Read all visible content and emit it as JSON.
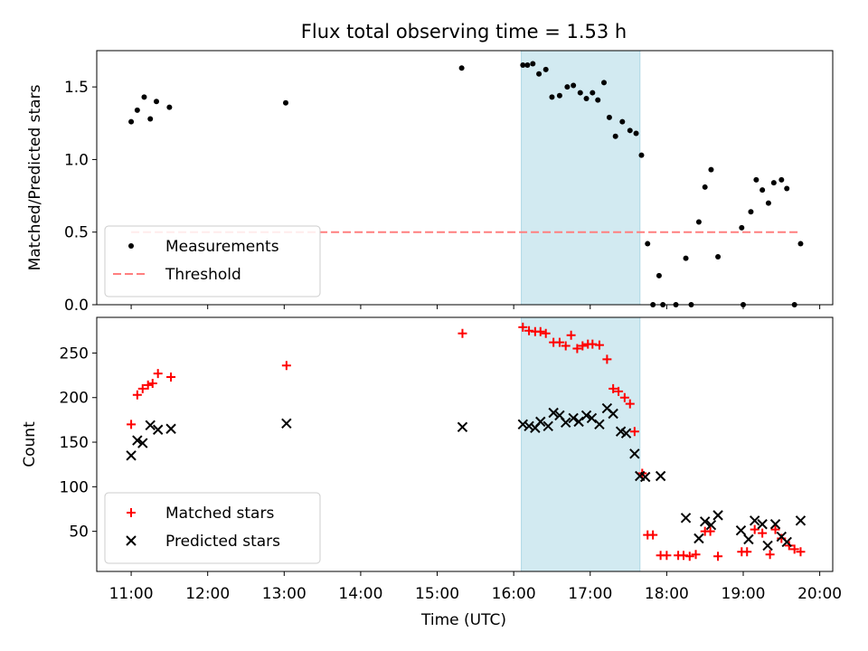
{
  "chart_data": {
    "type": "scatter",
    "title": "Flux total observing time = 1.53 h",
    "xlabel": "Time (UTC)",
    "xlim": [
      10.55,
      20.17
    ],
    "x_ticks": [
      11,
      12,
      13,
      14,
      15,
      16,
      17,
      18,
      19,
      20
    ],
    "x_tick_labels": [
      "11:00",
      "12:00",
      "13:00",
      "14:00",
      "15:00",
      "16:00",
      "17:00",
      "18:00",
      "19:00",
      "20:00"
    ],
    "shaded_interval": [
      16.1,
      17.65
    ],
    "shaded_color": "#add8e6",
    "panels": [
      {
        "ylabel": "Matched/Predicted stars",
        "ylim": [
          0,
          1.75
        ],
        "y_ticks": [
          0.0,
          0.5,
          1.0,
          1.5
        ],
        "y_tick_labels": [
          "0.0",
          "0.5",
          "1.0",
          "1.5"
        ],
        "legend_position": "lower-left",
        "series": [
          {
            "name": "Measurements",
            "marker": "dot",
            "color": "#000000",
            "x": [
              11.0,
              11.08,
              11.17,
              11.25,
              11.33,
              11.5,
              13.02,
              15.32,
              16.12,
              16.18,
              16.25,
              16.33,
              16.42,
              16.5,
              16.6,
              16.7,
              16.78,
              16.87,
              16.95,
              17.03,
              17.1,
              17.18,
              17.25,
              17.33,
              17.42,
              17.52,
              17.6,
              17.67,
              17.75,
              17.82,
              17.9,
              17.95,
              18.12,
              18.25,
              18.32,
              18.42,
              18.5,
              18.58,
              18.67,
              18.98,
              19.0,
              19.1,
              19.17,
              19.25,
              19.33,
              19.4,
              19.5,
              19.57,
              19.67,
              19.75
            ],
            "y": [
              1.26,
              1.34,
              1.43,
              1.28,
              1.4,
              1.36,
              1.39,
              1.63,
              1.65,
              1.65,
              1.66,
              1.59,
              1.62,
              1.43,
              1.44,
              1.5,
              1.51,
              1.46,
              1.42,
              1.46,
              1.41,
              1.53,
              1.29,
              1.16,
              1.26,
              1.2,
              1.18,
              1.03,
              0.42,
              0.0,
              0.2,
              0.0,
              0.0,
              0.32,
              0.0,
              0.57,
              0.81,
              0.93,
              0.33,
              0.53,
              0.0,
              0.64,
              0.86,
              0.79,
              0.7,
              0.84,
              0.86,
              0.8,
              0.0,
              0.42
            ]
          },
          {
            "name": "Threshold",
            "marker": "dashed-line",
            "color": "#ff7f7f",
            "x": [
              11.0,
              19.75
            ],
            "y": [
              0.5,
              0.5
            ]
          }
        ]
      },
      {
        "ylabel": "Count",
        "ylim": [
          5,
          290
        ],
        "y_ticks": [
          50,
          100,
          150,
          200,
          250
        ],
        "y_tick_labels": [
          "50",
          "100",
          "150",
          "200",
          "250"
        ],
        "legend_position": "lower-left",
        "series": [
          {
            "name": "Matched stars",
            "marker": "plus",
            "color": "#ff0000",
            "x": [
              11.0,
              11.08,
              11.15,
              11.22,
              11.28,
              11.35,
              11.52,
              13.03,
              15.33,
              16.12,
              16.2,
              16.28,
              16.35,
              16.42,
              16.52,
              16.6,
              16.68,
              16.75,
              16.83,
              16.9,
              16.97,
              17.03,
              17.12,
              17.22,
              17.3,
              17.37,
              17.45,
              17.52,
              17.58,
              17.68,
              17.75,
              17.82,
              17.92,
              18.0,
              18.15,
              18.22,
              18.3,
              18.38,
              18.5,
              18.57,
              18.67,
              18.98,
              19.05,
              19.15,
              19.25,
              19.35,
              19.42,
              19.5,
              19.6,
              19.67,
              19.75
            ],
            "y": [
              170,
              203,
              210,
              214,
              216,
              227,
              223,
              236,
              272,
              279,
              275,
              274,
              274,
              272,
              262,
              262,
              258,
              270,
              255,
              258,
              260,
              260,
              259,
              243,
              210,
              207,
              200,
              193,
              162,
              115,
              46,
              46,
              23,
              23,
              23,
              23,
              22,
              24,
              50,
              50,
              22,
              27,
              27,
              52,
              48,
              24,
              52,
              42,
              34,
              30,
              27
            ]
          },
          {
            "name": "Predicted stars",
            "marker": "x",
            "color": "#000000",
            "x": [
              11.0,
              11.08,
              11.15,
              11.25,
              11.35,
              11.52,
              13.03,
              15.33,
              16.12,
              16.2,
              16.28,
              16.35,
              16.45,
              16.52,
              16.6,
              16.68,
              16.78,
              16.85,
              16.95,
              17.02,
              17.12,
              17.22,
              17.3,
              17.4,
              17.47,
              17.58,
              17.65,
              17.72,
              17.92,
              18.25,
              18.42,
              18.5,
              18.58,
              18.67,
              18.97,
              19.07,
              19.15,
              19.25,
              19.32,
              19.42,
              19.5,
              19.57,
              19.75
            ],
            "y": [
              135,
              152,
              149,
              169,
              164,
              165,
              171,
              167,
              170,
              168,
              166,
              173,
              168,
              183,
              180,
              172,
              177,
              173,
              180,
              177,
              170,
              188,
              182,
              162,
              160,
              137,
              112,
              111,
              112,
              65,
              42,
              61,
              57,
              68,
              51,
              41,
              62,
              58,
              34,
              58,
              44,
              38,
              62
            ]
          }
        ]
      }
    ]
  }
}
